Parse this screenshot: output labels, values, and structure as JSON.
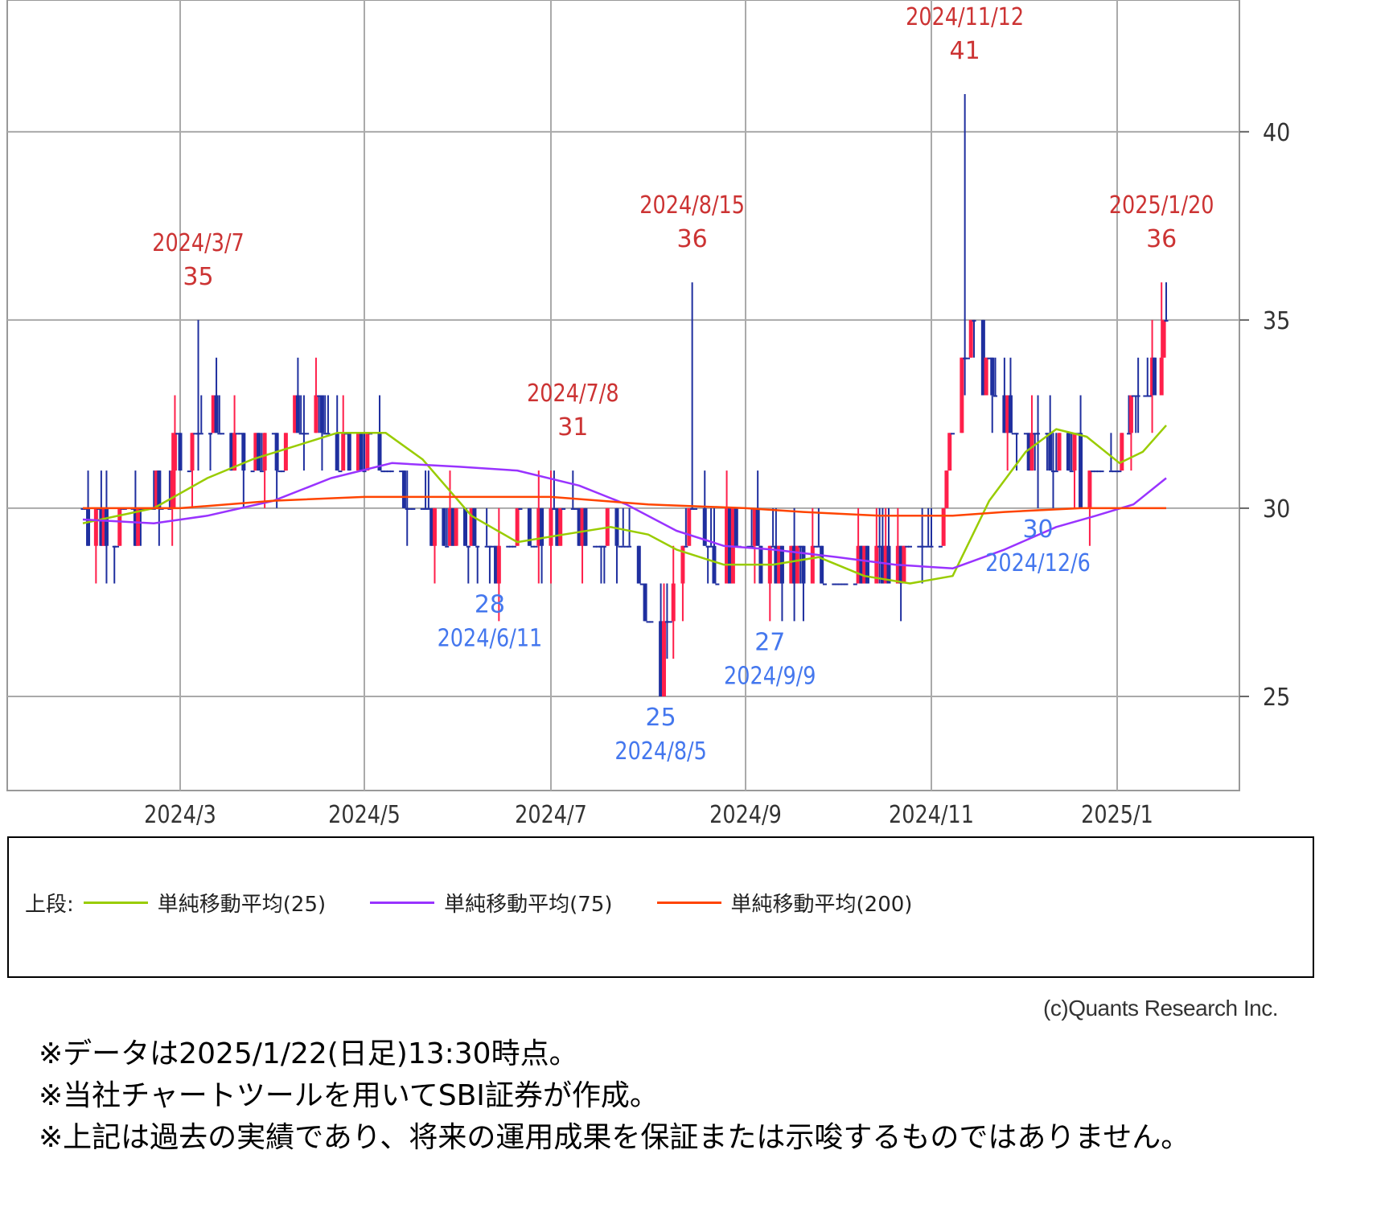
{
  "chart_data": {
    "type": "candlestick",
    "y_ticks": [
      "25",
      "30",
      "35",
      "40"
    ],
    "ylim": [
      22.5,
      43.5
    ],
    "x_ticks": [
      "2024/3",
      "2024/5",
      "2024/7",
      "2024/9",
      "2024/11",
      "2025/1"
    ],
    "grid": true,
    "colors": {
      "up": "#ff1f4a",
      "down": "#1f2f9f",
      "ma25": "#99cc00",
      "ma75": "#9933ff",
      "ma200": "#ff4400",
      "high_label": "#cc3333",
      "low_label": "#4477ee"
    },
    "price_path": [
      [
        "2024/1/24",
        30
      ],
      [
        "2024/2/1",
        29.6
      ],
      [
        "2024/2/15",
        29.5
      ],
      [
        "2024/2/26",
        30.7
      ],
      [
        "2024/3/7",
        32.4
      ],
      [
        "2024/3/20",
        31.8
      ],
      [
        "2024/4/1",
        31.5
      ],
      [
        "2024/4/12",
        32.4
      ],
      [
        "2024/4/24",
        31.4
      ],
      [
        "2024/5/7",
        31.5
      ],
      [
        "2024/5/17",
        30.2
      ],
      [
        "2024/5/27",
        29.2
      ],
      [
        "2024/6/5",
        29.4
      ],
      [
        "2024/6/11",
        28.6
      ],
      [
        "2024/6/20",
        29.5
      ],
      [
        "2024/7/1",
        29.5
      ],
      [
        "2024/7/8",
        30.1
      ],
      [
        "2024/7/18",
        29.4
      ],
      [
        "2024/7/26",
        28.9
      ],
      [
        "2024/8/5",
        25.8
      ],
      [
        "2024/8/9",
        27.5
      ],
      [
        "2024/8/15",
        30.5
      ],
      [
        "2024/8/22",
        28.6
      ],
      [
        "2024/8/30",
        29.5
      ],
      [
        "2024/9/9",
        28.5
      ],
      [
        "2024/9/20",
        28.4
      ],
      [
        "2024/10/1",
        28.5
      ],
      [
        "2024/10/15",
        28.4
      ],
      [
        "2024/10/28",
        28.5
      ],
      [
        "2024/11/5",
        30.2
      ],
      [
        "2024/11/12",
        34.8
      ],
      [
        "2024/11/20",
        33.2
      ],
      [
        "2024/11/28",
        32.1
      ],
      [
        "2024/12/6",
        31.6
      ],
      [
        "2024/12/16",
        31.3
      ],
      [
        "2024/12/26",
        30.9
      ],
      [
        "2025/1/6",
        31.7
      ],
      [
        "2025/1/14",
        33.2
      ],
      [
        "2025/1/20",
        34.6
      ],
      [
        "2025/1/22",
        34.8
      ]
    ],
    "series": [
      {
        "name": "単純移動平均(25)",
        "values": [
          [
            "2024/1/24",
            29.6
          ],
          [
            "2024/2/20",
            30.0
          ],
          [
            "2024/3/10",
            30.8
          ],
          [
            "2024/3/25",
            31.3
          ],
          [
            "2024/4/10",
            31.7
          ],
          [
            "2024/4/22",
            32.0
          ],
          [
            "2024/5/8",
            32.0
          ],
          [
            "2024/5/20",
            31.3
          ],
          [
            "2024/6/5",
            29.8
          ],
          [
            "2024/6/20",
            29.1
          ],
          [
            "2024/7/5",
            29.3
          ],
          [
            "2024/7/20",
            29.5
          ],
          [
            "2024/8/1",
            29.3
          ],
          [
            "2024/8/10",
            28.9
          ],
          [
            "2024/8/25",
            28.5
          ],
          [
            "2024/9/10",
            28.5
          ],
          [
            "2024/9/25",
            28.7
          ],
          [
            "2024/10/10",
            28.2
          ],
          [
            "2024/10/25",
            28.0
          ],
          [
            "2024/11/8",
            28.2
          ],
          [
            "2024/11/20",
            30.2
          ],
          [
            "2024/12/2",
            31.5
          ],
          [
            "2024/12/12",
            32.1
          ],
          [
            "2024/12/22",
            31.9
          ],
          [
            "2025/1/2",
            31.2
          ],
          [
            "2025/1/12",
            31.5
          ],
          [
            "2025/1/22",
            32.2
          ]
        ]
      },
      {
        "name": "単純移動平均(75)",
        "values": [
          [
            "2024/1/24",
            29.7
          ],
          [
            "2024/2/20",
            29.6
          ],
          [
            "2024/3/10",
            29.8
          ],
          [
            "2024/4/1",
            30.2
          ],
          [
            "2024/4/20",
            30.8
          ],
          [
            "2024/5/10",
            31.2
          ],
          [
            "2024/6/1",
            31.1
          ],
          [
            "2024/6/20",
            31.0
          ],
          [
            "2024/7/10",
            30.6
          ],
          [
            "2024/7/25",
            30.1
          ],
          [
            "2024/8/10",
            29.4
          ],
          [
            "2024/8/25",
            29.0
          ],
          [
            "2024/9/10",
            28.9
          ],
          [
            "2024/10/1",
            28.7
          ],
          [
            "2024/10/20",
            28.5
          ],
          [
            "2024/11/8",
            28.4
          ],
          [
            "2024/11/25",
            28.9
          ],
          [
            "2024/12/12",
            29.5
          ],
          [
            "2024/12/25",
            29.8
          ],
          [
            "2025/1/8",
            30.1
          ],
          [
            "2025/1/22",
            30.8
          ]
        ]
      },
      {
        "name": "単純移動平均(200)",
        "values": [
          [
            "2024/1/24",
            30.0
          ],
          [
            "2024/3/1",
            30.0
          ],
          [
            "2024/4/1",
            30.2
          ],
          [
            "2024/5/1",
            30.3
          ],
          [
            "2024/6/1",
            30.3
          ],
          [
            "2024/7/1",
            30.3
          ],
          [
            "2024/8/1",
            30.1
          ],
          [
            "2024/9/1",
            30.0
          ],
          [
            "2024/9/20",
            29.9
          ],
          [
            "2024/10/15",
            29.8
          ],
          [
            "2024/11/8",
            29.8
          ],
          [
            "2024/11/25",
            29.9
          ],
          [
            "2024/12/20",
            30.0
          ],
          [
            "2025/1/22",
            30.0
          ]
        ]
      }
    ],
    "annotations": [
      {
        "kind": "high",
        "date": "2024/3/7",
        "value": 35,
        "value_text": "35",
        "date_text": "2024/3/7"
      },
      {
        "kind": "high",
        "date": "2024/7/8",
        "value": 31,
        "value_text": "31",
        "date_text": "2024/7/8"
      },
      {
        "kind": "high",
        "date": "2024/8/15",
        "value": 36,
        "value_text": "36",
        "date_text": "2024/8/15"
      },
      {
        "kind": "high",
        "date": "2024/11/12",
        "value": 41,
        "value_text": "41",
        "date_text": "2024/11/12"
      },
      {
        "kind": "high",
        "date": "2025/1/20",
        "value": 36,
        "value_text": "36",
        "date_text": "2025/1/20"
      },
      {
        "kind": "low",
        "date": "2024/6/11",
        "value": 28,
        "value_text": "28",
        "date_text": "2024/6/11"
      },
      {
        "kind": "low",
        "date": "2024/8/5",
        "value": 25,
        "value_text": "25",
        "date_text": "2024/8/5"
      },
      {
        "kind": "low",
        "date": "2024/9/9",
        "value": 27,
        "value_text": "27",
        "date_text": "2024/9/9"
      },
      {
        "kind": "low",
        "date": "2024/12/6",
        "value": 30,
        "value_text": "30",
        "date_text": "2024/12/6"
      }
    ]
  },
  "legend": {
    "prefix": "上段:",
    "items": [
      {
        "label": "単純移動平均(25)",
        "color": "#99cc00"
      },
      {
        "label": "単純移動平均(75)",
        "color": "#9933ff"
      },
      {
        "label": "単純移動平均(200)",
        "color": "#ff4400"
      }
    ]
  },
  "copyright": "(c)Quants Research Inc.",
  "notes": [
    "※データは2025/1/22(日足)13:30時点。",
    "※当社チャートツールを用いてSBI証券が作成。",
    "※上記は過去の実績であり、将来の運用成果を保証または示唆するものではありません。"
  ]
}
